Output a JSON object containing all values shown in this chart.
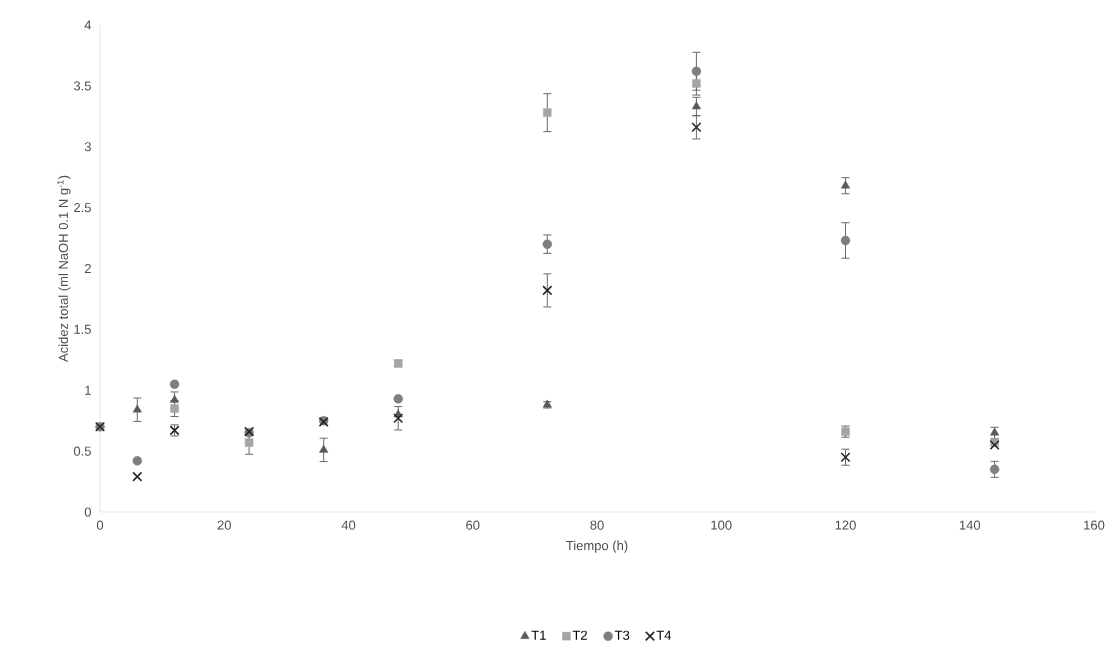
{
  "chart_data": {
    "type": "scatter",
    "xlabel": "Tiempo (h)",
    "ylabel": "Acidez total (ml NaOH  0.1 N g$^{-1}$)",
    "x": [
      0,
      6,
      12,
      24,
      36,
      48,
      72,
      96,
      120,
      144
    ],
    "xlim": [
      0,
      160
    ],
    "xticks": [
      0,
      20,
      40,
      60,
      80,
      100,
      120,
      140,
      160
    ],
    "ylim": [
      0,
      4
    ],
    "yticks": [
      0,
      0.5,
      1,
      1.5,
      2,
      2.5,
      3,
      3.5,
      4
    ],
    "grid": false,
    "legend": "bottom",
    "series": [
      {
        "name": "T1",
        "color": "#595959",
        "marker": "triangle",
        "values": [
          null,
          0.84,
          0.92,
          null,
          0.51,
          0.8,
          0.88,
          3.33,
          2.68,
          0.65
        ],
        "errors": [
          null,
          0.1,
          0.07,
          null,
          0.1,
          null,
          0.03,
          0.08,
          0.07,
          0.05
        ]
      },
      {
        "name": "T2",
        "color": "#a5a5a5",
        "marker": "square",
        "values": [
          null,
          null,
          0.85,
          0.57,
          null,
          1.22,
          3.28,
          3.52,
          0.66,
          0.57
        ],
        "errors": [
          null,
          null,
          0.07,
          0.1,
          null,
          0.03,
          0.16,
          0.1,
          0.05,
          null
        ]
      },
      {
        "name": "T3",
        "color": "#7f7f7f",
        "marker": "circle",
        "values": [
          0.7,
          0.42,
          1.05,
          0.65,
          0.75,
          0.93,
          2.2,
          3.62,
          2.23,
          0.35
        ],
        "errors": [
          null,
          null,
          null,
          null,
          null,
          null,
          0.08,
          0.16,
          0.15,
          0.07
        ]
      },
      {
        "name": "T4",
        "color": "#262626",
        "marker": "cross",
        "values": [
          0.7,
          0.29,
          0.67,
          0.66,
          0.74,
          0.77,
          1.82,
          3.16,
          0.45,
          0.55
        ],
        "errors": [
          null,
          null,
          0.05,
          null,
          null,
          0.1,
          0.14,
          0.1,
          0.07,
          null
        ]
      }
    ]
  }
}
